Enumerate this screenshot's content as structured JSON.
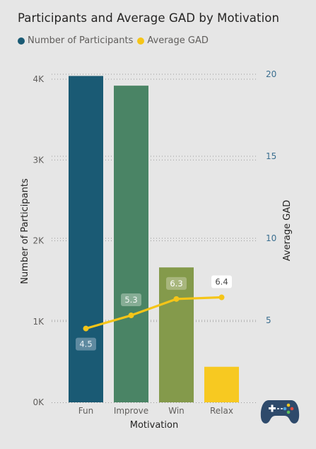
{
  "chart_data": {
    "type": "bar",
    "title": "Participants and Average GAD by Motivation",
    "xlabel": "Motivation",
    "ylabel": "Number of Participants",
    "y2label": "Average GAD",
    "categories": [
      "Fun",
      "Improve",
      "Win",
      "Relax"
    ],
    "series": [
      {
        "name": "Number of Participants",
        "type": "bar",
        "axis": "left",
        "values": [
          4040,
          3920,
          1670,
          440
        ],
        "bar_colors": [
          "#1a5a74",
          "#4a8465",
          "#849a4b",
          "#f7c921"
        ]
      },
      {
        "name": "Average GAD",
        "type": "line",
        "axis": "right",
        "values": [
          4.5,
          5.3,
          6.3,
          6.4
        ],
        "data_labels": [
          "4.5",
          "5.3",
          "6.3",
          "6.4"
        ],
        "color": "#f5c518"
      }
    ],
    "ylim": [
      0,
      4000
    ],
    "y2lim": [
      0,
      20
    ],
    "y_ticks": [
      {
        "value": 0,
        "label": "0K"
      },
      {
        "value": 1000,
        "label": "1K"
      },
      {
        "value": 2000,
        "label": "2K"
      },
      {
        "value": 3000,
        "label": "3K"
      },
      {
        "value": 4000,
        "label": "4K"
      }
    ],
    "y2_ticks": [
      {
        "value": 5,
        "label": "5"
      },
      {
        "value": 10,
        "label": "10"
      },
      {
        "value": 15,
        "label": "15"
      },
      {
        "value": 20,
        "label": "20"
      }
    ],
    "grid": true,
    "legend": "top-left"
  },
  "legend_colors": {
    "participants": "#1a5a74",
    "gad": "#f5c518"
  },
  "icons": [
    "gamepad-icon"
  ]
}
